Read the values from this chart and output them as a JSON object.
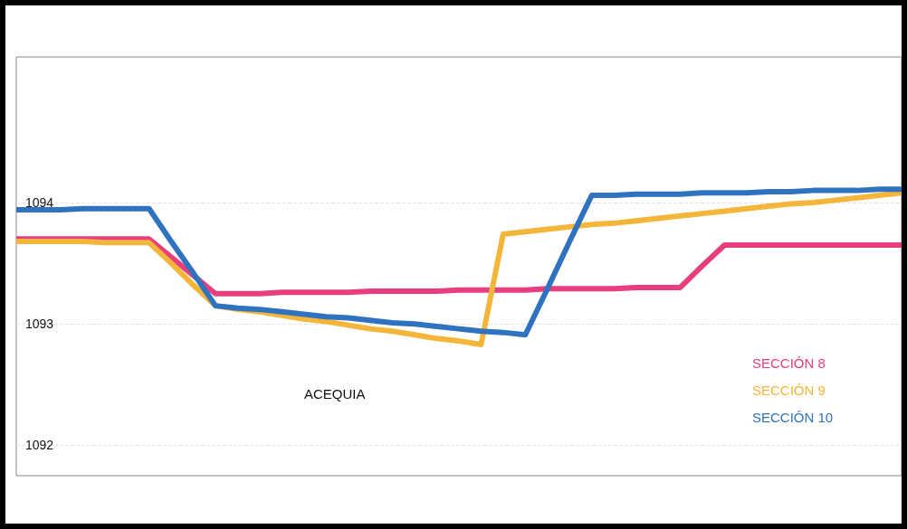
{
  "chart_data": {
    "type": "line",
    "categories": [
      null,
      null,
      null,
      null,
      null,
      null,
      null,
      null,
      null,
      null,
      null,
      null,
      null,
      null,
      null,
      null,
      null,
      null,
      null,
      null,
      null,
      null,
      null,
      null,
      null,
      null,
      null,
      null,
      null,
      null,
      null,
      null,
      null,
      null,
      null,
      null,
      null,
      null,
      null,
      null,
      null
    ],
    "ylim": [
      1091.75,
      1095.2
    ],
    "yticks": [
      1092,
      1093,
      1094
    ],
    "tick_labels": "y",
    "grid": "y",
    "line_style": "solid",
    "marker": "none",
    "annotations": [
      "ACEQUIA"
    ],
    "series": [
      {
        "name": "SECCIÓN 8",
        "color": "#e83e7e",
        "values": [
          1093.7,
          1093.7,
          1093.7,
          1093.7,
          1093.7,
          1093.7,
          1093.7,
          1093.55,
          1093.4,
          1093.25,
          1093.25,
          1093.25,
          1093.26,
          1093.26,
          1093.26,
          1093.26,
          1093.27,
          1093.27,
          1093.27,
          1093.27,
          1093.28,
          1093.28,
          1093.28,
          1093.28,
          1093.29,
          1093.29,
          1093.29,
          1093.29,
          1093.3,
          1093.3,
          1093.3,
          1093.48,
          1093.65,
          1093.65,
          1093.65,
          1093.65,
          1093.65,
          1093.65,
          1093.65,
          1093.65,
          1093.65
        ]
      },
      {
        "name": "SECCIÓN 9",
        "color": "#f4b63a",
        "values": [
          1093.68,
          1093.68,
          1093.68,
          1093.68,
          1093.67,
          1093.67,
          1093.67,
          1093.5,
          1093.32,
          1093.15,
          1093.12,
          1093.1,
          1093.07,
          1093.04,
          1093.02,
          1092.99,
          1092.96,
          1092.94,
          1092.91,
          1092.88,
          1092.86,
          1092.83,
          1093.74,
          1093.76,
          1093.78,
          1093.8,
          1093.82,
          1093.83,
          1093.85,
          1093.87,
          1093.89,
          1093.91,
          1093.93,
          1093.95,
          1093.97,
          1093.99,
          1094,
          1094.02,
          1094.04,
          1094.06,
          1094.08
        ]
      },
      {
        "name": "SECCIÓN 10",
        "color": "#2f73c0",
        "values": [
          1093.94,
          1093.94,
          1093.94,
          1093.95,
          1093.95,
          1093.95,
          1093.95,
          1093.68,
          1093.42,
          1093.15,
          1093.13,
          1093.12,
          1093.1,
          1093.08,
          1093.06,
          1093.05,
          1093.03,
          1093.01,
          1093,
          1092.98,
          1092.96,
          1092.94,
          1092.93,
          1092.91,
          1093.29,
          1093.68,
          1094.06,
          1094.06,
          1094.07,
          1094.07,
          1094.07,
          1094.08,
          1094.08,
          1094.08,
          1094.09,
          1094.09,
          1094.1,
          1094.1,
          1094.1,
          1094.11,
          1094.11
        ]
      }
    ]
  }
}
